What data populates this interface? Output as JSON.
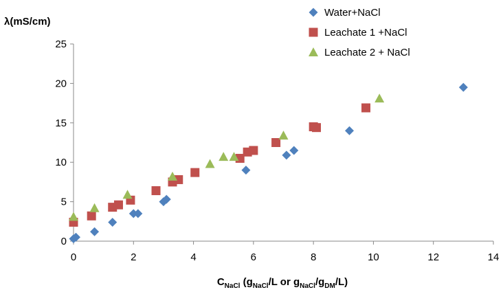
{
  "chart_data": {
    "type": "scatter",
    "ylabel": "λ(mS/cm)",
    "xlabel": {
      "C": "C",
      "sub_NaCl": "NaCl",
      "open": " (g",
      "sub_NaCl2": "NaCl",
      "mid": "/L or g",
      "sub_NaCl3": "NaCl",
      "slash": "/g",
      "sub_DM": "DM",
      "close": "/L)"
    },
    "xlim": [
      0,
      14
    ],
    "ylim": [
      0,
      25
    ],
    "xticks": [
      "0",
      "2",
      "4",
      "6",
      "8",
      "10",
      "12",
      "14"
    ],
    "yticks": [
      "0",
      "5",
      "10",
      "15",
      "20",
      "25"
    ],
    "grid": false,
    "legend_position": "top-right",
    "series": [
      {
        "name": "Water+NaCl",
        "marker": "diamond",
        "color": "#4F81BD",
        "points": [
          [
            0.0,
            0.3
          ],
          [
            0.08,
            0.5
          ],
          [
            0.7,
            1.2
          ],
          [
            1.3,
            2.4
          ],
          [
            2.0,
            3.5
          ],
          [
            2.15,
            3.5
          ],
          [
            3.0,
            5.0
          ],
          [
            3.1,
            5.3
          ],
          [
            5.75,
            9.0
          ],
          [
            7.1,
            10.9
          ],
          [
            7.35,
            11.5
          ],
          [
            9.2,
            14.0
          ],
          [
            13.0,
            19.5
          ]
        ]
      },
      {
        "name": "Leachate 1 +NaCl",
        "marker": "square",
        "color": "#C0504D",
        "points": [
          [
            0.0,
            2.4
          ],
          [
            0.6,
            3.2
          ],
          [
            1.3,
            4.3
          ],
          [
            1.5,
            4.6
          ],
          [
            1.9,
            5.2
          ],
          [
            2.75,
            6.4
          ],
          [
            3.3,
            7.5
          ],
          [
            3.5,
            7.8
          ],
          [
            4.05,
            8.7
          ],
          [
            5.55,
            10.5
          ],
          [
            5.8,
            11.3
          ],
          [
            6.0,
            11.5
          ],
          [
            6.75,
            12.5
          ],
          [
            8.0,
            14.5
          ],
          [
            8.1,
            14.4
          ],
          [
            9.75,
            16.9
          ]
        ]
      },
      {
        "name": "Leachate 2 + NaCl",
        "marker": "triangle",
        "color": "#9BBB59",
        "points": [
          [
            0.0,
            3.1
          ],
          [
            0.7,
            4.2
          ],
          [
            1.8,
            5.9
          ],
          [
            3.3,
            8.2
          ],
          [
            4.55,
            9.8
          ],
          [
            5.0,
            10.7
          ],
          [
            5.35,
            10.7
          ],
          [
            7.0,
            13.4
          ],
          [
            10.2,
            18.1
          ]
        ]
      }
    ]
  }
}
